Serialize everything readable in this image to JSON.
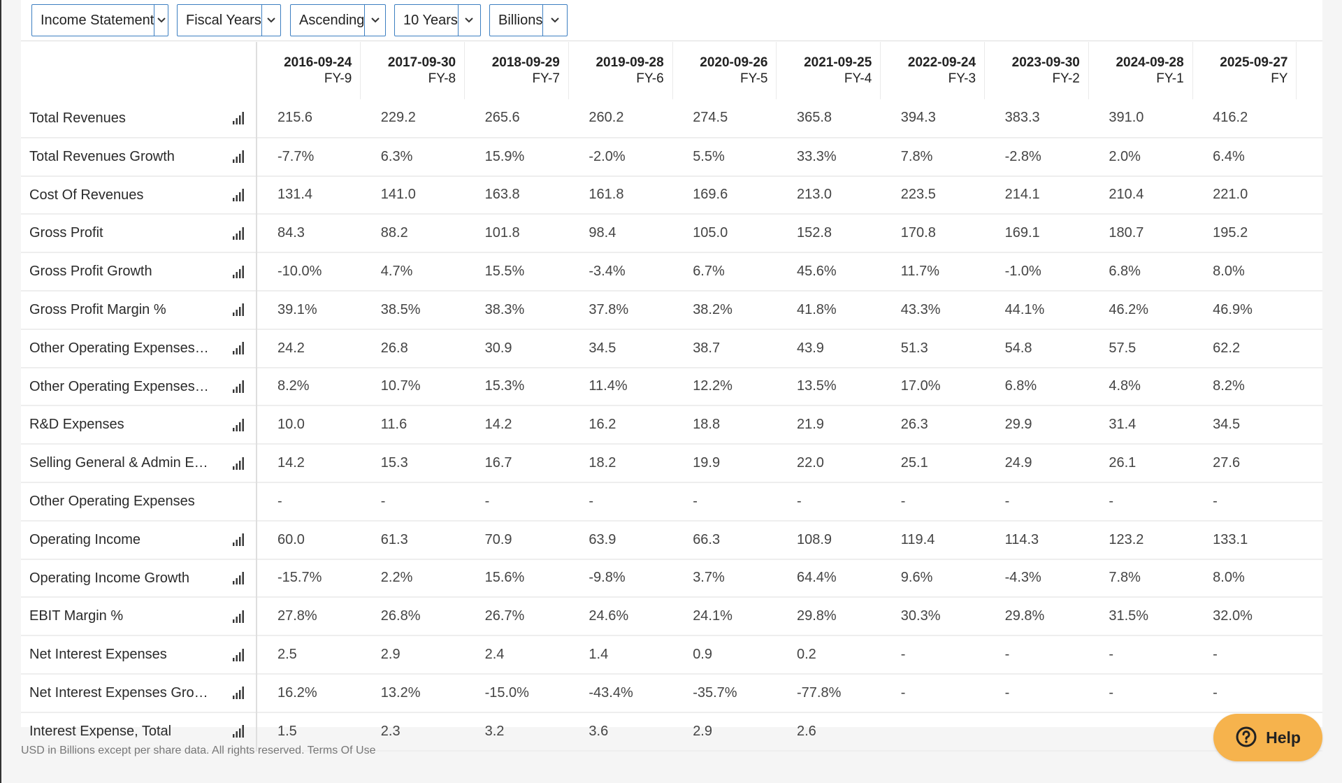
{
  "toolbar": {
    "dropdowns": [
      {
        "label": "Income Statement"
      },
      {
        "label": "Fiscal Years"
      },
      {
        "label": "Ascending"
      },
      {
        "label": "10 Years"
      },
      {
        "label": "Billions"
      }
    ]
  },
  "table": {
    "columns": [
      {
        "date": "2016-09-24",
        "fy": "FY-9"
      },
      {
        "date": "2017-09-30",
        "fy": "FY-8"
      },
      {
        "date": "2018-09-29",
        "fy": "FY-7"
      },
      {
        "date": "2019-09-28",
        "fy": "FY-6"
      },
      {
        "date": "2020-09-26",
        "fy": "FY-5"
      },
      {
        "date": "2021-09-25",
        "fy": "FY-4"
      },
      {
        "date": "2022-09-24",
        "fy": "FY-3"
      },
      {
        "date": "2023-09-30",
        "fy": "FY-2"
      },
      {
        "date": "2024-09-28",
        "fy": "FY-1"
      },
      {
        "date": "2025-09-27",
        "fy": "FY"
      }
    ],
    "rows": [
      {
        "label": "Total Revenues",
        "chart": true,
        "values": [
          "215.6",
          "229.2",
          "265.6",
          "260.2",
          "274.5",
          "365.8",
          "394.3",
          "383.3",
          "391.0",
          "416.2"
        ]
      },
      {
        "label": "Total Revenues Growth",
        "chart": true,
        "values": [
          "-7.7%",
          "6.3%",
          "15.9%",
          "-2.0%",
          "5.5%",
          "33.3%",
          "7.8%",
          "-2.8%",
          "2.0%",
          "6.4%"
        ]
      },
      {
        "label": "Cost Of Revenues",
        "chart": true,
        "values": [
          "131.4",
          "141.0",
          "163.8",
          "161.8",
          "169.6",
          "213.0",
          "223.5",
          "214.1",
          "210.4",
          "221.0"
        ]
      },
      {
        "label": "Gross Profit",
        "chart": true,
        "values": [
          "84.3",
          "88.2",
          "101.8",
          "98.4",
          "105.0",
          "152.8",
          "170.8",
          "169.1",
          "180.7",
          "195.2"
        ]
      },
      {
        "label": "Gross Profit Growth",
        "chart": true,
        "values": [
          "-10.0%",
          "4.7%",
          "15.5%",
          "-3.4%",
          "6.7%",
          "45.6%",
          "11.7%",
          "-1.0%",
          "6.8%",
          "8.0%"
        ]
      },
      {
        "label": "Gross Profit Margin %",
        "chart": true,
        "values": [
          "39.1%",
          "38.5%",
          "38.3%",
          "37.8%",
          "38.2%",
          "41.8%",
          "43.3%",
          "44.1%",
          "46.2%",
          "46.9%"
        ]
      },
      {
        "label": "Other Operating Expenses…",
        "chart": true,
        "values": [
          "24.2",
          "26.8",
          "30.9",
          "34.5",
          "38.7",
          "43.9",
          "51.3",
          "54.8",
          "57.5",
          "62.2"
        ]
      },
      {
        "label": "Other Operating Expenses…",
        "chart": true,
        "values": [
          "8.2%",
          "10.7%",
          "15.3%",
          "11.4%",
          "12.2%",
          "13.5%",
          "17.0%",
          "6.8%",
          "4.8%",
          "8.2%"
        ]
      },
      {
        "label": "R&D Expenses",
        "chart": true,
        "values": [
          "10.0",
          "11.6",
          "14.2",
          "16.2",
          "18.8",
          "21.9",
          "26.3",
          "29.9",
          "31.4",
          "34.5"
        ]
      },
      {
        "label": "Selling General & Admin E…",
        "chart": true,
        "values": [
          "14.2",
          "15.3",
          "16.7",
          "18.2",
          "19.9",
          "22.0",
          "25.1",
          "24.9",
          "26.1",
          "27.6"
        ]
      },
      {
        "label": "Other Operating Expenses",
        "chart": false,
        "values": [
          "-",
          "-",
          "-",
          "-",
          "-",
          "-",
          "-",
          "-",
          "-",
          "-"
        ]
      },
      {
        "label": "Operating Income",
        "chart": true,
        "values": [
          "60.0",
          "61.3",
          "70.9",
          "63.9",
          "66.3",
          "108.9",
          "119.4",
          "114.3",
          "123.2",
          "133.1"
        ]
      },
      {
        "label": "Operating Income Growth",
        "chart": true,
        "values": [
          "-15.7%",
          "2.2%",
          "15.6%",
          "-9.8%",
          "3.7%",
          "64.4%",
          "9.6%",
          "-4.3%",
          "7.8%",
          "8.0%"
        ]
      },
      {
        "label": "EBIT Margin %",
        "chart": true,
        "values": [
          "27.8%",
          "26.8%",
          "26.7%",
          "24.6%",
          "24.1%",
          "29.8%",
          "30.3%",
          "29.8%",
          "31.5%",
          "32.0%"
        ]
      },
      {
        "label": "Net Interest Expenses",
        "chart": true,
        "values": [
          "2.5",
          "2.9",
          "2.4",
          "1.4",
          "0.9",
          "0.2",
          "-",
          "-",
          "-",
          "-"
        ]
      },
      {
        "label": "Net Interest Expenses Gro…",
        "chart": true,
        "values": [
          "16.2%",
          "13.2%",
          "-15.0%",
          "-43.4%",
          "-35.7%",
          "-77.8%",
          "-",
          "-",
          "-",
          "-"
        ]
      },
      {
        "label": "Interest Expense, Total",
        "chart": true,
        "values": [
          "1.5",
          "2.3",
          "3.2",
          "3.6",
          "2.9",
          "2.6",
          "",
          "",
          "",
          ""
        ]
      }
    ]
  },
  "footer": {
    "text": "USD in Billions except per share data. All rights reserved. Terms Of Use"
  },
  "help": {
    "label": "Help"
  },
  "colors": {
    "accent_border": "#3d7fc1",
    "help_bg": "#f6b34d"
  }
}
